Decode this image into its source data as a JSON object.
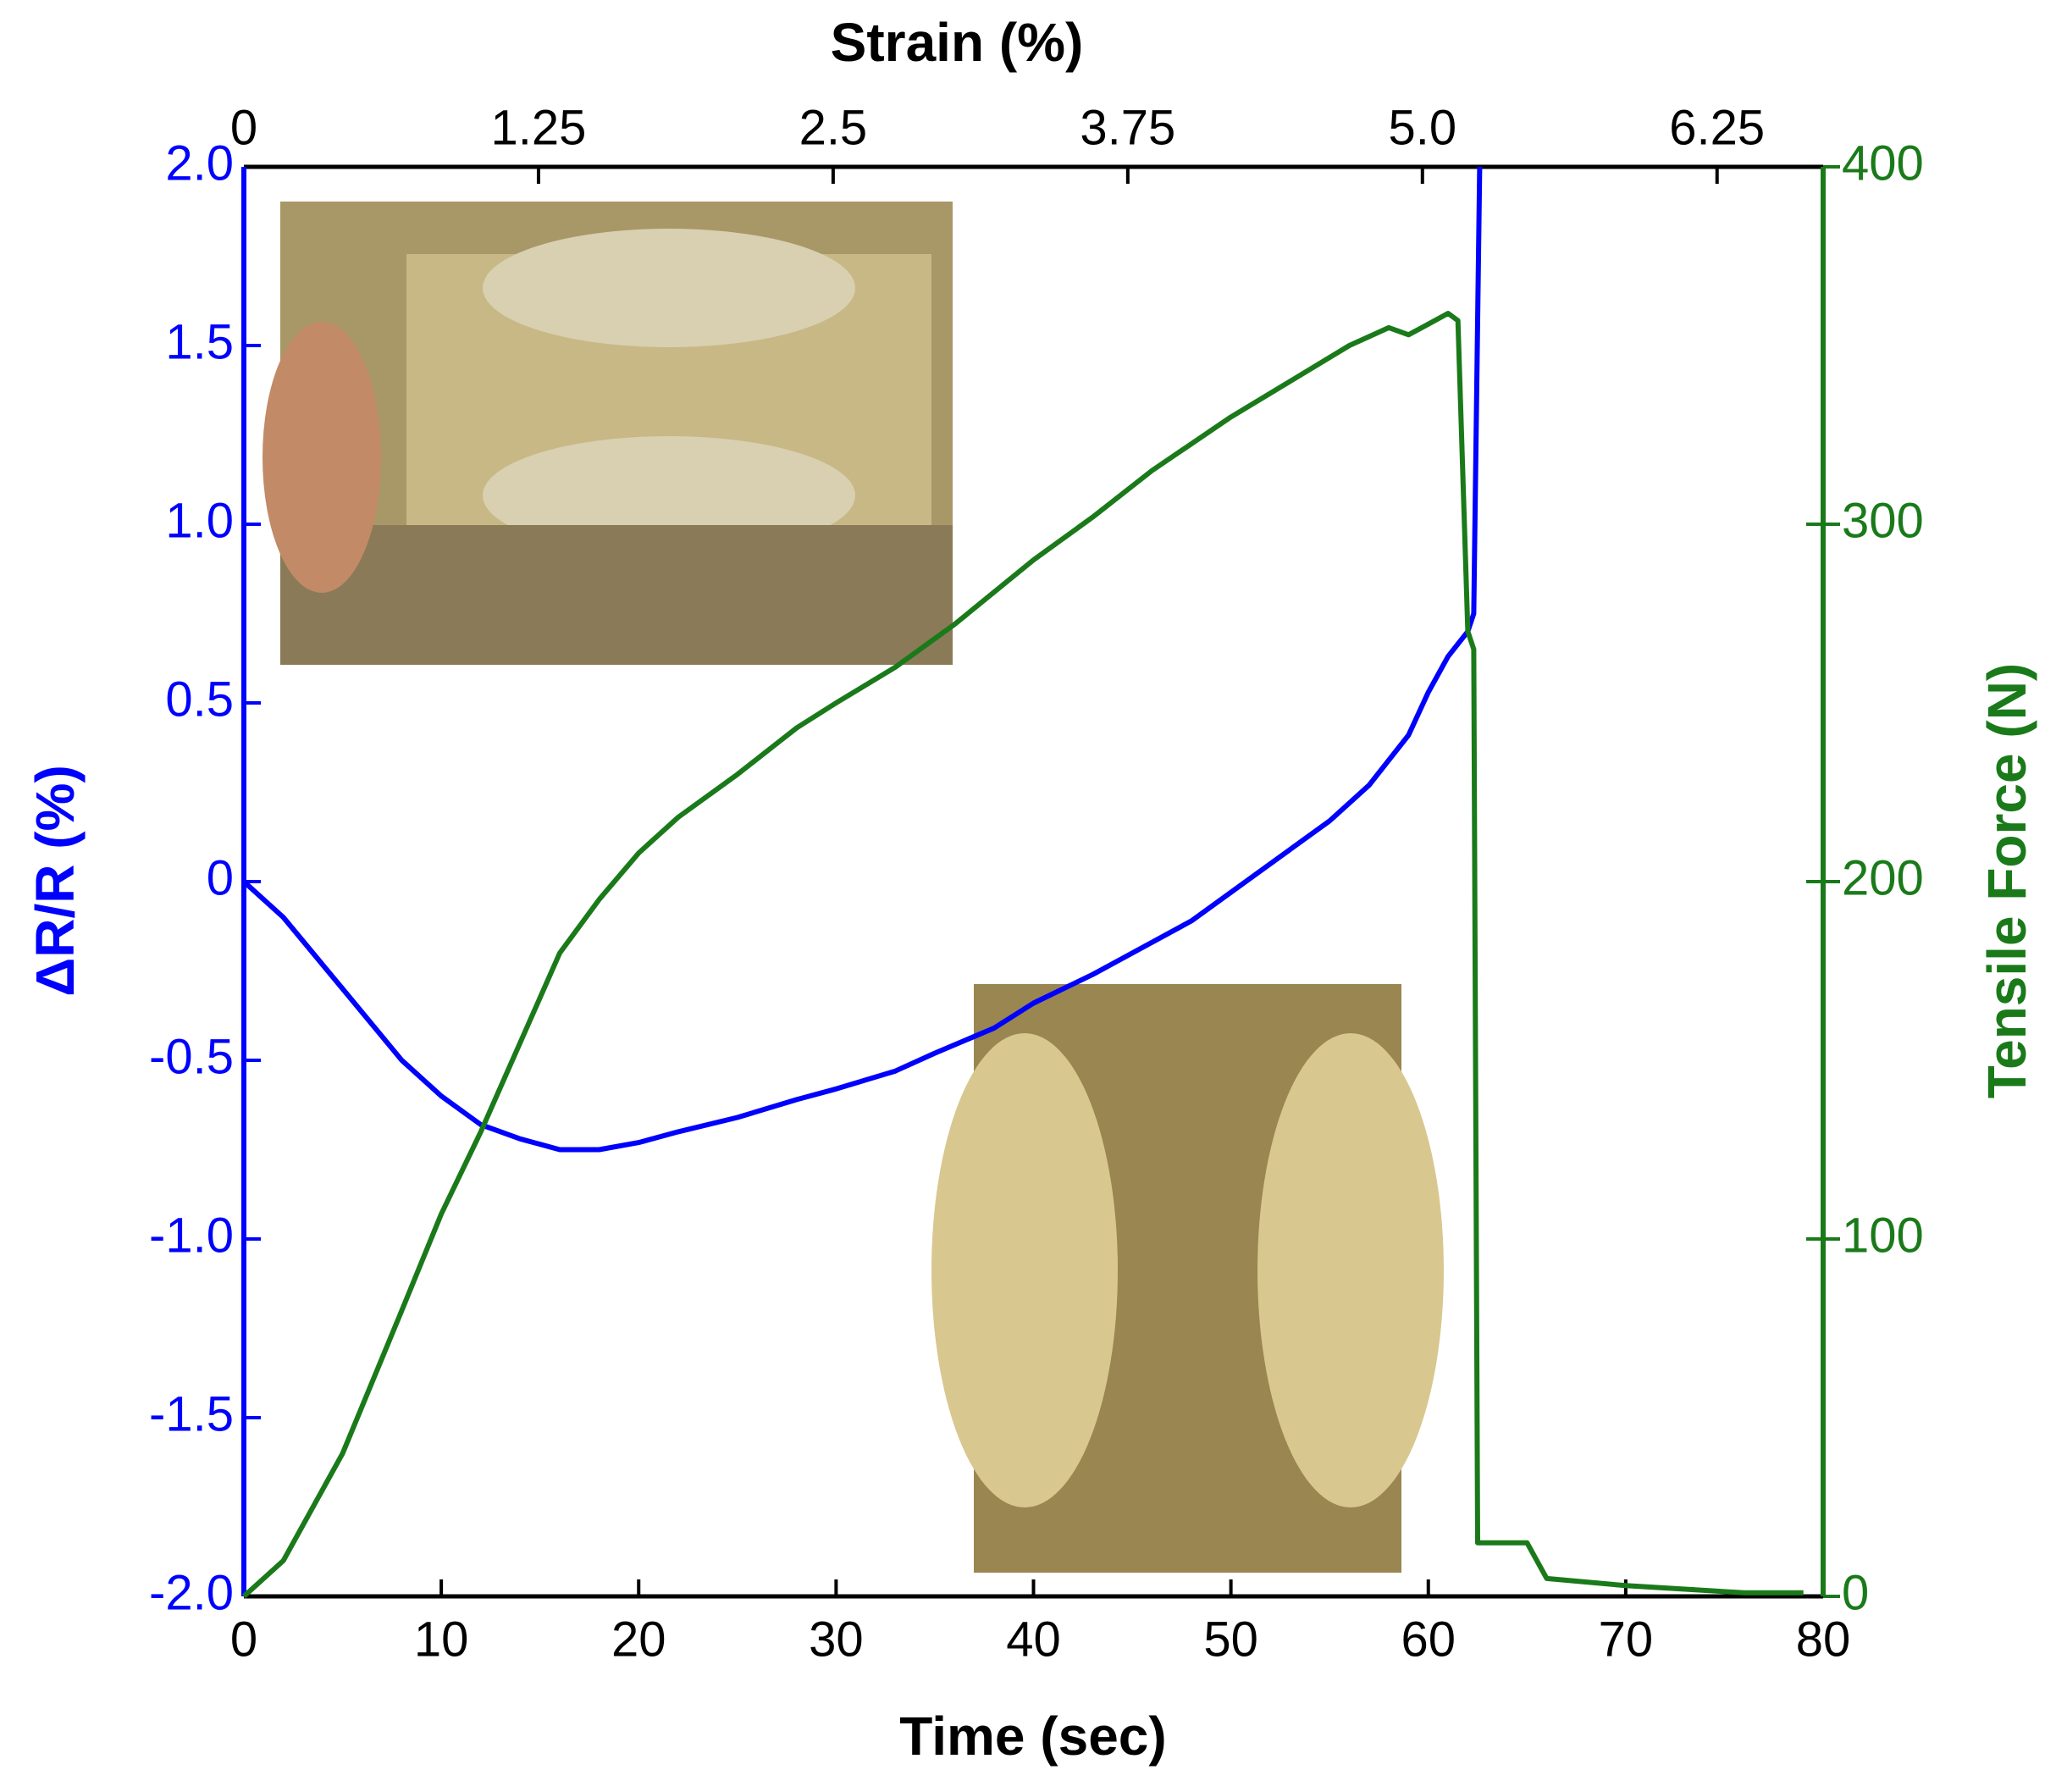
{
  "chart_data": {
    "type": "line",
    "x_label": "Time (sec)",
    "x2_label": "Strain (%)",
    "y_label": "ΔR/R (%)",
    "y2_label": "Tensile Force (N)",
    "xlim": [
      0,
      80
    ],
    "xticks": [
      0,
      10,
      20,
      30,
      40,
      50,
      60,
      70,
      80
    ],
    "x2lim": [
      0,
      6.7
    ],
    "x2ticks": [
      0,
      1.25,
      2.5,
      3.75,
      {
        "value": 5.0,
        "label": "5.0"
      },
      6.25
    ],
    "ylim": [
      -2,
      2
    ],
    "yticks": [
      {
        "value": -2,
        "label": "-2.0"
      },
      -1.5,
      {
        "value": -1,
        "label": "-1.0"
      },
      -0.5,
      0,
      0.5,
      {
        "value": 1,
        "label": "1.0"
      },
      1.5,
      {
        "value": 2,
        "label": "2.0"
      }
    ],
    "y2lim": [
      0,
      400
    ],
    "y2ticks": [
      0,
      100,
      200,
      300,
      400
    ],
    "y_color": "#0000ff",
    "y2_color": "#1a7a1a",
    "series": [
      {
        "name": "ΔR/R",
        "color": "#0000ff",
        "x": [
          0,
          2,
          5,
          8,
          10,
          12,
          14,
          16,
          18,
          20,
          22,
          25,
          28,
          30,
          33,
          35,
          38,
          40,
          43,
          45,
          48,
          50,
          53,
          55,
          57,
          59,
          60,
          61,
          62,
          62.3,
          62.6
        ],
        "values": [
          0,
          -0.1,
          -0.3,
          -0.5,
          -0.6,
          -0.68,
          -0.72,
          -0.75,
          -0.75,
          -0.73,
          -0.7,
          -0.66,
          -0.61,
          -0.58,
          -0.53,
          -0.48,
          -0.41,
          -0.34,
          -0.26,
          -0.2,
          -0.11,
          -0.03,
          0.09,
          0.17,
          0.27,
          0.41,
          0.53,
          0.63,
          0.7,
          0.75,
          2.0
        ]
      },
      {
        "name": "Tensile Force",
        "color": "#1a7a1a",
        "axis": "y2",
        "x": [
          0,
          2,
          5,
          8,
          10,
          12,
          14,
          16,
          18,
          20,
          22,
          25,
          28,
          30,
          33,
          36,
          40,
          43,
          46,
          50,
          53,
          56,
          58,
          59,
          60,
          61,
          61.5,
          62,
          62.3,
          62.5,
          65,
          66,
          70,
          76,
          79
        ],
        "values": [
          0,
          10,
          40,
          80,
          107,
          130,
          155,
          180,
          195,
          208,
          218,
          230,
          243,
          250,
          260,
          272,
          290,
          302,
          315,
          330,
          340,
          350,
          355,
          353,
          356,
          359,
          357,
          270,
          265,
          15,
          15,
          5,
          3,
          1,
          1
        ]
      }
    ]
  }
}
